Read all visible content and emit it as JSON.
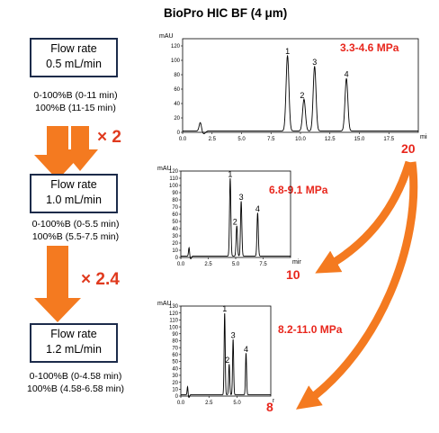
{
  "title": "BioPro HIC BF (4 μm)",
  "conditions": [
    {
      "flow_label": "Flow rate",
      "flow_value": "0.5 mL/min",
      "gradient": "0-100%B (0-11 min)",
      "hold": "100%B (11-15 min)",
      "pressure": "3.3-4.6 MPa"
    },
    {
      "flow_label": "Flow rate",
      "flow_value": "1.0 mL/min",
      "gradient": "0-100%B (0-5.5 min)",
      "hold": "100%B (5.5-7.5 min)",
      "pressure": "6.8-9.1 MPa"
    },
    {
      "flow_label": "Flow rate",
      "flow_value": "1.2 mL/min",
      "gradient": "0-100%B (0-4.58 min)",
      "hold": "100%B (4.58-6.58 min)",
      "pressure": "8.2-11.0 MPa"
    }
  ],
  "multipliers": [
    "× 2",
    "× 2.4"
  ],
  "run_times": {
    "first": "20",
    "second": "10",
    "third": "8"
  },
  "colors": {
    "arrow": "#f47a20",
    "red_text": "#e8261c",
    "box_border": "#1c2b4a"
  },
  "chart_data": [
    {
      "type": "line",
      "ylabel": "mAU",
      "xlabel": "min",
      "ylim": [
        0,
        130
      ],
      "xlim": [
        0,
        20
      ],
      "yticks": [
        0,
        20,
        40,
        60,
        80,
        100,
        120
      ],
      "xticks": [
        0,
        2.5,
        5,
        7.5,
        10,
        12.5,
        15,
        17.5
      ],
      "peaks": [
        {
          "label": "1",
          "rt": 8.9,
          "height": 105
        },
        {
          "label": "2",
          "rt": 10.3,
          "height": 44
        },
        {
          "label": "3",
          "rt": 11.2,
          "height": 90
        },
        {
          "label": "4",
          "rt": 13.9,
          "height": 73
        }
      ]
    },
    {
      "type": "line",
      "ylabel": "mAU",
      "xlabel": "min",
      "ylim": [
        0,
        120
      ],
      "xlim": [
        0,
        10
      ],
      "yticks": [
        0,
        10,
        20,
        30,
        40,
        50,
        60,
        70,
        80,
        90,
        100,
        110,
        120
      ],
      "xticks": [
        0,
        2.5,
        5,
        7.5
      ],
      "peaks": [
        {
          "label": "1",
          "rt": 4.5,
          "height": 108
        },
        {
          "label": "2",
          "rt": 5.1,
          "height": 42
        },
        {
          "label": "3",
          "rt": 5.5,
          "height": 76
        },
        {
          "label": "4",
          "rt": 7.0,
          "height": 60
        }
      ]
    },
    {
      "type": "line",
      "ylabel": "mAU",
      "xlabel": "min",
      "ylim": [
        0,
        130
      ],
      "xlim": [
        0,
        8
      ],
      "yticks": [
        0,
        10,
        20,
        30,
        40,
        50,
        60,
        70,
        80,
        90,
        100,
        110,
        120,
        130
      ],
      "xticks": [
        0,
        2.5,
        5
      ],
      "peaks": [
        {
          "label": "1",
          "rt": 3.9,
          "height": 118
        },
        {
          "label": "2",
          "rt": 4.3,
          "height": 44
        },
        {
          "label": "3",
          "rt": 4.65,
          "height": 80
        },
        {
          "label": "4",
          "rt": 5.8,
          "height": 60
        }
      ]
    }
  ]
}
